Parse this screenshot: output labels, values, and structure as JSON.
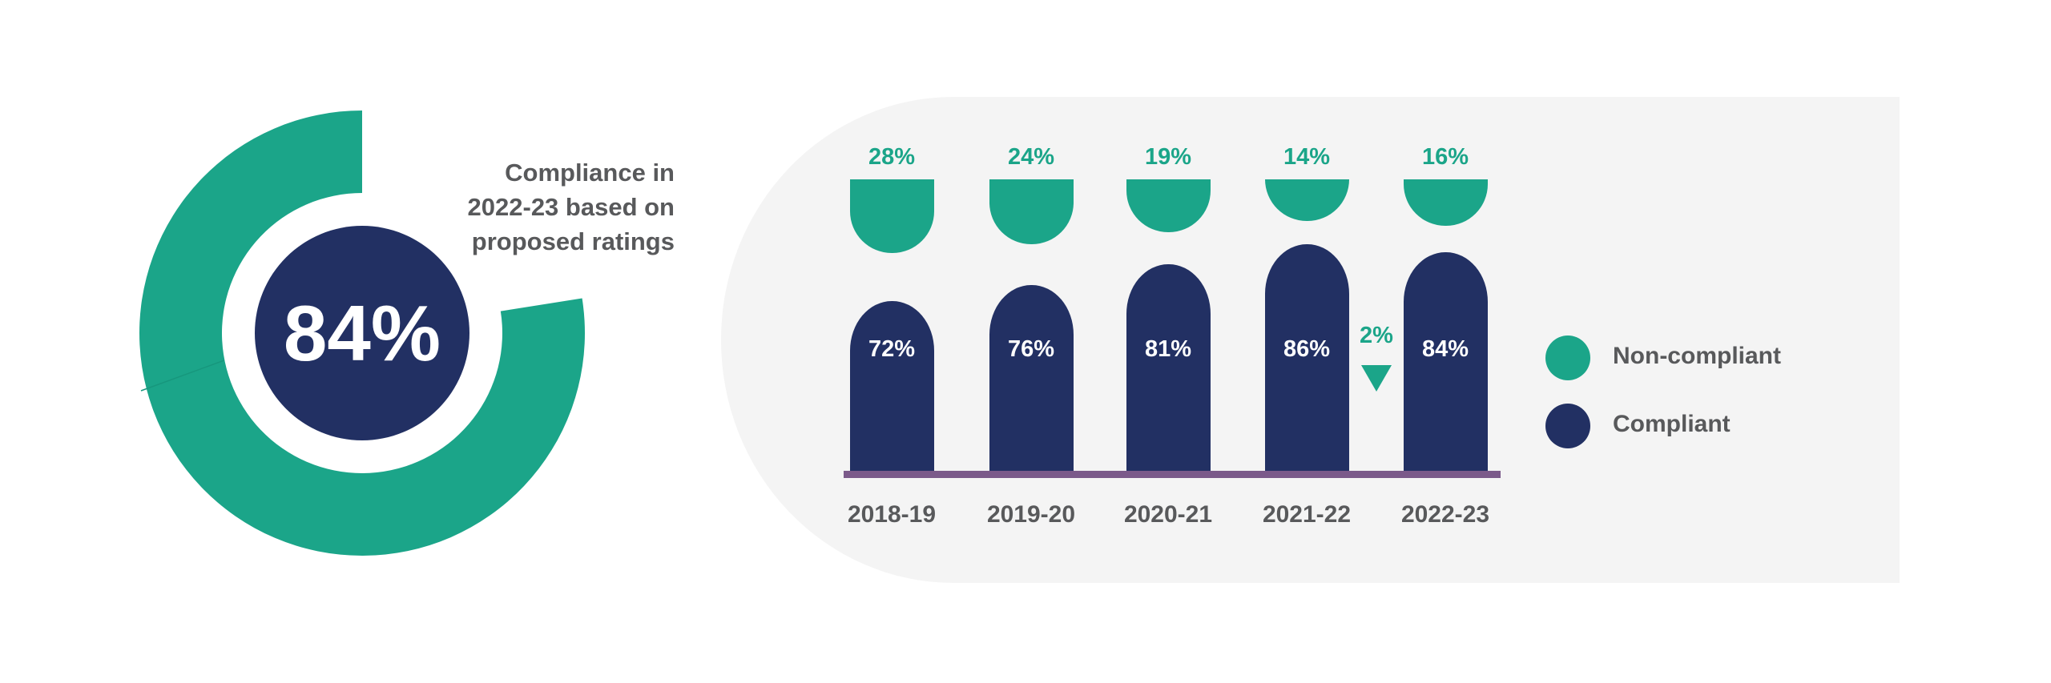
{
  "colors": {
    "non_compliant": "#1ba589",
    "compliant": "#223063",
    "baseline": "#7b5a8a",
    "text": "#58595b",
    "panel": "#f4f4f4"
  },
  "donut": {
    "title": "Compliance in\n2022-23 based on\nproposed ratings",
    "value_label": "84%",
    "value": 84
  },
  "chart_data": {
    "type": "bar",
    "categories": [
      "2018-19",
      "2019-20",
      "2020-21",
      "2021-22",
      "2022-23"
    ],
    "series": [
      {
        "name": "Compliant",
        "values": [
          72,
          76,
          81,
          86,
          84
        ],
        "labels": [
          "72%",
          "76%",
          "81%",
          "86%",
          "84%"
        ]
      },
      {
        "name": "Non-compliant",
        "values": [
          28,
          24,
          19,
          14,
          16
        ],
        "labels": [
          "28%",
          "24%",
          "19%",
          "14%",
          "16%"
        ]
      }
    ],
    "annotation": {
      "text": "2%",
      "direction": "down",
      "between": [
        "2021-22",
        "2022-23"
      ]
    },
    "legend": [
      "Non-compliant",
      "Compliant"
    ],
    "legend_position": "right"
  }
}
